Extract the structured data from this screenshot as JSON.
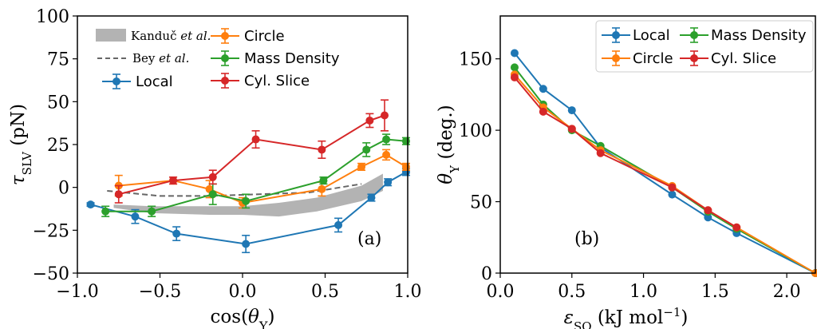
{
  "colors": {
    "blue": "#1f77b4",
    "orange": "#ff7f0e",
    "green": "#2ca02c",
    "red": "#d62728",
    "gray_band": "#b3b3b3",
    "dashed": "#666666"
  },
  "chart_data": [
    {
      "type": "line",
      "panel_label": "(a)",
      "xlabel": "cos(θY)",
      "ylabel": "τSLV (pN)",
      "xlim": [
        -1.0,
        1.0
      ],
      "ylim": [
        -50,
        100
      ],
      "xticks": [
        "−1.0",
        "−0.5",
        "0.0",
        "0.5",
        "1.0"
      ],
      "yticks": [
        "−50",
        "−25",
        "0",
        "25",
        "50",
        "75",
        "100"
      ],
      "legend_placement": "top-left",
      "series": [
        {
          "name": "Local",
          "color": "#1f77b4",
          "x": [
            -0.92,
            -0.65,
            -0.4,
            0.02,
            0.58,
            0.78,
            0.88,
            0.99
          ],
          "y": [
            -10,
            -17,
            -27,
            -33,
            -22,
            -6,
            3,
            9
          ],
          "err": [
            1,
            4,
            4,
            5,
            4,
            2,
            2,
            2
          ]
        },
        {
          "name": "Circle",
          "color": "#ff7f0e",
          "x": [
            -0.75,
            -0.42,
            -0.2,
            0.0,
            0.48,
            0.72,
            0.87,
            0.99
          ],
          "y": [
            1,
            4,
            -1,
            -9,
            -1,
            12,
            19,
            12
          ],
          "err": [
            6,
            2,
            5,
            3,
            4,
            2,
            3,
            2
          ]
        },
        {
          "name": "Mass Density",
          "color": "#2ca02c",
          "x": [
            -0.83,
            -0.55,
            -0.18,
            0.02,
            0.49,
            0.75,
            0.87,
            0.99
          ],
          "y": [
            -14,
            -14,
            -4,
            -8,
            4,
            22,
            28,
            27
          ],
          "err": [
            3,
            3,
            6,
            4,
            2,
            4,
            3,
            2
          ]
        },
        {
          "name": "Cyl. Slice",
          "color": "#d62728",
          "x": [
            -0.75,
            -0.42,
            -0.18,
            0.08,
            0.48,
            0.77,
            0.86
          ],
          "y": [
            -4,
            4,
            6,
            28,
            22,
            39,
            42
          ],
          "err": [
            5,
            2,
            4,
            5,
            5,
            4,
            9
          ]
        }
      ],
      "reference": [
        {
          "name": "Kanduč et al.",
          "style": "gray band",
          "x": [
            -0.78,
            -0.55,
            -0.2,
            0.0,
            0.22,
            0.45,
            0.72,
            0.85
          ],
          "y_low": [
            -12,
            -15,
            -16,
            -16,
            -17,
            -14,
            -8,
            -2
          ],
          "y_high": [
            -10,
            -11,
            -11,
            -11,
            -9,
            -6,
            1,
            8
          ]
        },
        {
          "name": "Bey et al.",
          "style": "dashed",
          "x": [
            -0.82,
            -0.5,
            -0.2,
            0.1,
            0.4,
            0.72
          ],
          "y": [
            -2,
            -5,
            -5,
            -4,
            -3,
            2
          ]
        }
      ]
    },
    {
      "type": "line",
      "panel_label": "(b)",
      "xlabel": "εSO (kJ mol−1)",
      "ylabel": "θY (deg.)",
      "xlim": [
        0.0,
        2.2
      ],
      "ylim": [
        0,
        180
      ],
      "xticks": [
        "0.0",
        "0.5",
        "1.0",
        "1.5",
        "2.0"
      ],
      "yticks": [
        "0",
        "50",
        "100",
        "150"
      ],
      "legend_placement": "top-right",
      "series": [
        {
          "name": "Local",
          "color": "#1f77b4",
          "x": [
            0.1,
            0.3,
            0.5,
            0.7,
            1.2,
            1.45,
            1.65,
            2.2
          ],
          "y": [
            154,
            129,
            114,
            88,
            55,
            39,
            28,
            0
          ]
        },
        {
          "name": "Mass Density",
          "color": "#2ca02c",
          "x": [
            0.1,
            0.3,
            0.5,
            0.7,
            1.2,
            1.45,
            1.65,
            2.2
          ],
          "y": [
            144,
            118,
            100,
            89,
            60,
            43,
            31,
            0
          ]
        },
        {
          "name": "Circle",
          "color": "#ff7f0e",
          "x": [
            0.1,
            0.3,
            0.5,
            0.7,
            1.2,
            1.45,
            1.65,
            2.2
          ],
          "y": [
            139,
            116,
            101,
            86,
            61,
            44,
            32,
            0
          ]
        },
        {
          "name": "Cyl. Slice",
          "color": "#d62728",
          "x": [
            0.1,
            0.3,
            0.5,
            0.7,
            1.2,
            1.45,
            1.65
          ],
          "y": [
            137,
            113,
            101,
            84,
            60,
            44,
            32
          ]
        }
      ]
    }
  ]
}
